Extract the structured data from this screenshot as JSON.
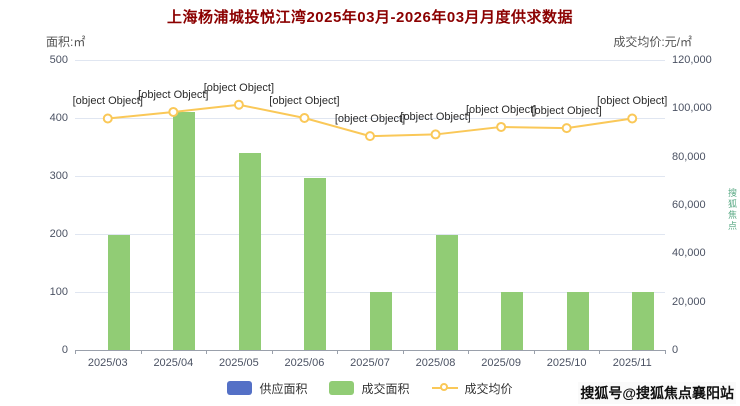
{
  "title": "上海杨浦城投悦江湾2025年03月-2026年03月月度供求数据",
  "axes": {
    "left_label": "面积:㎡",
    "right_label": "成交均价:元/㎡"
  },
  "chart_data": {
    "type": "bar+line",
    "categories": [
      "2025/03",
      "2025/04",
      "2025/05",
      "2025/06",
      "2025/07",
      "2025/08",
      "2025/09",
      "2025/10",
      "2025/11"
    ],
    "series": [
      {
        "name": "供应面积",
        "type": "bar",
        "axis": "left",
        "color": "#5470c6",
        "values": [
          0,
          0,
          0,
          0,
          0,
          0,
          0,
          0,
          0
        ]
      },
      {
        "name": "成交面积",
        "type": "bar",
        "axis": "left",
        "color": "#91cc75",
        "values": [
          198,
          410,
          340,
          297,
          100,
          198,
          100,
          100,
          100
        ]
      },
      {
        "name": "成交均价",
        "type": "line",
        "axis": "right",
        "color": "#fac858",
        "point_fill": "#ffffff",
        "point_label": "[object Object]",
        "values": [
          95800,
          98500,
          101500,
          96000,
          88500,
          89200,
          92300,
          91800,
          95800
        ]
      }
    ],
    "left_axis": {
      "min": 0,
      "max": 500,
      "step": 100
    },
    "right_axis": {
      "min": 0,
      "max": 120000,
      "step": 20000
    },
    "grid": true,
    "legend_position": "bottom"
  },
  "watermark": "搜狐号@搜狐焦点襄阳站",
  "edge_watermark": "搜狐焦点"
}
